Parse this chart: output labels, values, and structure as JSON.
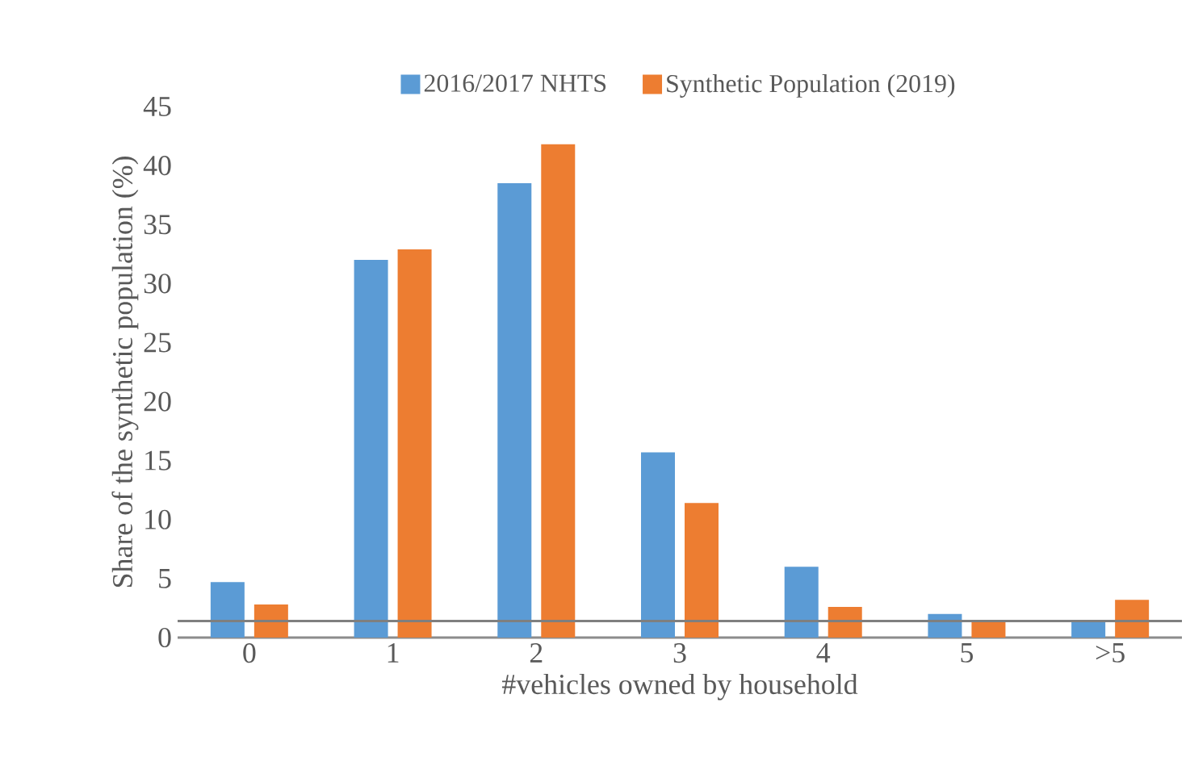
{
  "chart_data": {
    "type": "bar",
    "xlabel": "#vehicles owned by household",
    "ylabel": "Share of the synthetic population (%)",
    "categories": [
      "0",
      "1",
      "2",
      "3",
      "4",
      "5",
      ">5"
    ],
    "series": [
      {
        "name": "2016/2017 NHTS",
        "color": "#5b9bd5",
        "values": [
          4.7,
          32.0,
          38.5,
          15.7,
          6.0,
          2.0,
          1.3
        ]
      },
      {
        "name": "Synthetic Population (2019)",
        "color": "#ed7d31",
        "values": [
          2.8,
          32.9,
          41.8,
          11.4,
          2.6,
          1.4,
          3.2
        ]
      }
    ],
    "ylim": [
      0,
      45
    ],
    "yticks": [
      0,
      5,
      10,
      15,
      20,
      25,
      30,
      35,
      40,
      45
    ],
    "ref_lines": [
      {
        "axis": "y",
        "value": 1.4,
        "color": "#7f7f7f"
      }
    ],
    "legend": "top"
  }
}
